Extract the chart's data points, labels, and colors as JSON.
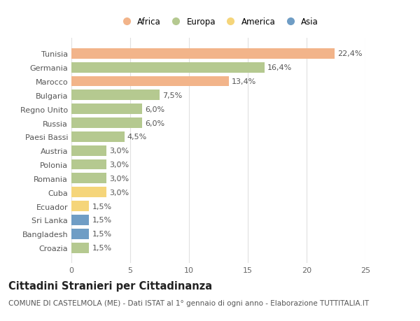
{
  "countries": [
    "Tunisia",
    "Germania",
    "Marocco",
    "Bulgaria",
    "Regno Unito",
    "Russia",
    "Paesi Bassi",
    "Austria",
    "Polonia",
    "Romania",
    "Cuba",
    "Ecuador",
    "Sri Lanka",
    "Bangladesh",
    "Croazia"
  ],
  "values": [
    22.4,
    16.4,
    13.4,
    7.5,
    6.0,
    6.0,
    4.5,
    3.0,
    3.0,
    3.0,
    3.0,
    1.5,
    1.5,
    1.5,
    1.5
  ],
  "labels": [
    "22,4%",
    "16,4%",
    "13,4%",
    "7,5%",
    "6,0%",
    "6,0%",
    "4,5%",
    "3,0%",
    "3,0%",
    "3,0%",
    "3,0%",
    "1,5%",
    "1,5%",
    "1,5%",
    "1,5%"
  ],
  "continents": [
    "Africa",
    "Europa",
    "Africa",
    "Europa",
    "Europa",
    "Europa",
    "Europa",
    "Europa",
    "Europa",
    "Europa",
    "America",
    "America",
    "Asia",
    "Asia",
    "Europa"
  ],
  "continent_colors": {
    "Africa": "#F2B48A",
    "Europa": "#B5C990",
    "America": "#F5D57A",
    "Asia": "#6F9DC5"
  },
  "legend_order": [
    "Africa",
    "Europa",
    "America",
    "Asia"
  ],
  "title": "Cittadini Stranieri per Cittadinanza",
  "subtitle": "COMUNE DI CASTELMOLA (ME) - Dati ISTAT al 1° gennaio di ogni anno - Elaborazione TUTTITALIA.IT",
  "xlim": [
    0,
    25
  ],
  "xticks": [
    0,
    5,
    10,
    15,
    20,
    25
  ],
  "bg_color": "#ffffff",
  "grid_color": "#e0e0e0",
  "title_fontsize": 10.5,
  "subtitle_fontsize": 7.5,
  "label_fontsize": 8,
  "tick_fontsize": 8,
  "legend_fontsize": 8.5
}
